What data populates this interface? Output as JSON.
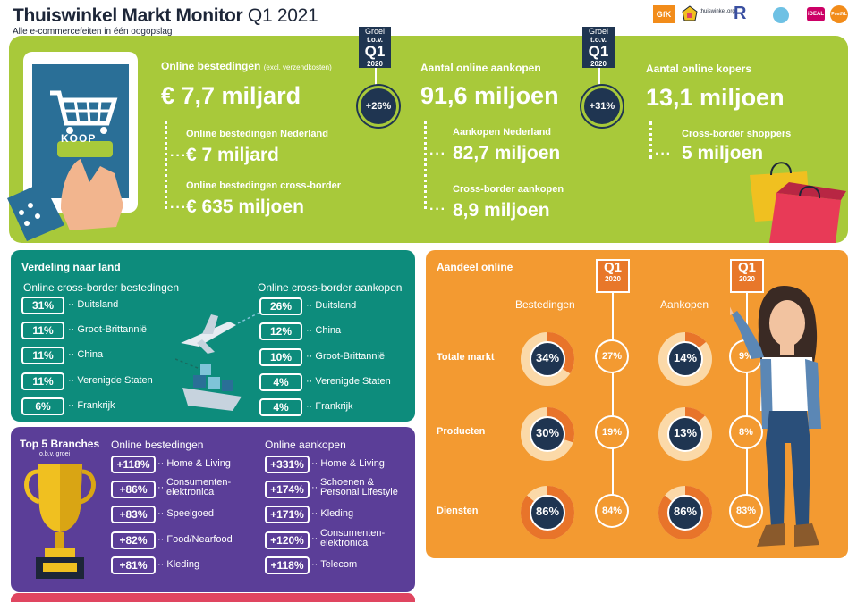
{
  "header": {
    "title_bold": "Thuiswinkel Markt Monitor",
    "title_thin": "Q1 2021",
    "subtitle": "Alle e-commercefeiten in één oogopslag",
    "logos": [
      "GfK",
      "thuiswinkel.org",
      "R",
      "iDEAL",
      "PostNL"
    ]
  },
  "overview": {
    "tablet_button": "KOOP",
    "growth_tag": {
      "line1": "Groei",
      "line2": "t.o.v.",
      "q": "Q1",
      "year": "2020"
    },
    "spend": {
      "label": "Online bestedingen",
      "note": "(excl. verzendkosten)",
      "value": "€ 7,7 miljard",
      "growth": "+26%",
      "nl_label": "Online bestedingen Nederland",
      "nl_value": "€ 7 miljard",
      "cb_label": "Online bestedingen cross-border",
      "cb_value": "€ 635 miljoen"
    },
    "purchases": {
      "label": "Aantal online aankopen",
      "value": "91,6 miljoen",
      "growth": "+31%",
      "nl_label": "Aankopen Nederland",
      "nl_value": "82,7 miljoen",
      "cb_label": "Cross-border aankopen",
      "cb_value": "8,9 miljoen"
    },
    "buyers": {
      "label": "Aantal online kopers",
      "value": "13,1 miljoen",
      "cb_label": "Cross-border shoppers",
      "cb_value": "5 miljoen"
    }
  },
  "countries": {
    "title": "Verdeling naar land",
    "spend_title": "Online cross-border bestedingen",
    "purchases_title": "Online cross-border aankopen",
    "spend": [
      {
        "pct": "31%",
        "country": "Duitsland"
      },
      {
        "pct": "11%",
        "country": "Groot-Brittannië"
      },
      {
        "pct": "11%",
        "country": "China"
      },
      {
        "pct": "11%",
        "country": "Verenigde Staten"
      },
      {
        "pct": "6%",
        "country": "Frankrijk"
      }
    ],
    "purchases": [
      {
        "pct": "26%",
        "country": "Duitsland"
      },
      {
        "pct": "12%",
        "country": "China"
      },
      {
        "pct": "10%",
        "country": "Groot-Brittannië"
      },
      {
        "pct": "4%",
        "country": "Verenigde Staten"
      },
      {
        "pct": "4%",
        "country": "Frankrijk"
      }
    ]
  },
  "branches": {
    "title": "Top 5 Branches",
    "subtitle": "o.b.v. groei",
    "spend_title": "Online bestedingen",
    "purchases_title": "Online aankopen",
    "spend": [
      {
        "growth": "+118%",
        "branch": "Home & Living"
      },
      {
        "growth": "+86%",
        "branch": "Consumenten- elektronica"
      },
      {
        "growth": "+83%",
        "branch": "Speelgoed"
      },
      {
        "growth": "+82%",
        "branch": "Food/Nearfood"
      },
      {
        "growth": "+81%",
        "branch": "Kleding"
      }
    ],
    "purchases": [
      {
        "growth": "+331%",
        "branch": "Home & Living"
      },
      {
        "growth": "+174%",
        "branch": "Schoenen & Personal Lifestyle"
      },
      {
        "growth": "+171%",
        "branch": "Kleding"
      },
      {
        "growth": "+120%",
        "branch": "Consumenten- elektronica"
      },
      {
        "growth": "+118%",
        "branch": "Telecom"
      }
    ]
  },
  "share": {
    "title": "Aandeel online",
    "q1_tag": {
      "q": "Q1",
      "year": "2020"
    },
    "col_spend": "Bestedingen",
    "col_purchases": "Aankopen",
    "rows": [
      {
        "label": "Totale markt",
        "spend_2021": "34%",
        "spend_2020": "27%",
        "purch_2021": "14%",
        "purch_2020": "9%",
        "spend_share": 0.34,
        "purch_share": 0.14
      },
      {
        "label": "Producten",
        "spend_2021": "30%",
        "spend_2020": "19%",
        "purch_2021": "13%",
        "purch_2020": "8%",
        "spend_share": 0.3,
        "purch_share": 0.13
      },
      {
        "label": "Diensten",
        "spend_2021": "86%",
        "spend_2020": "84%",
        "purch_2021": "86%",
        "purch_2020": "83%",
        "spend_share": 0.86,
        "purch_share": 0.86
      }
    ],
    "colors": {
      "ring_fill": "#e8742a",
      "ring_rest": "#fbd9a8",
      "center": "#1f3551"
    }
  }
}
